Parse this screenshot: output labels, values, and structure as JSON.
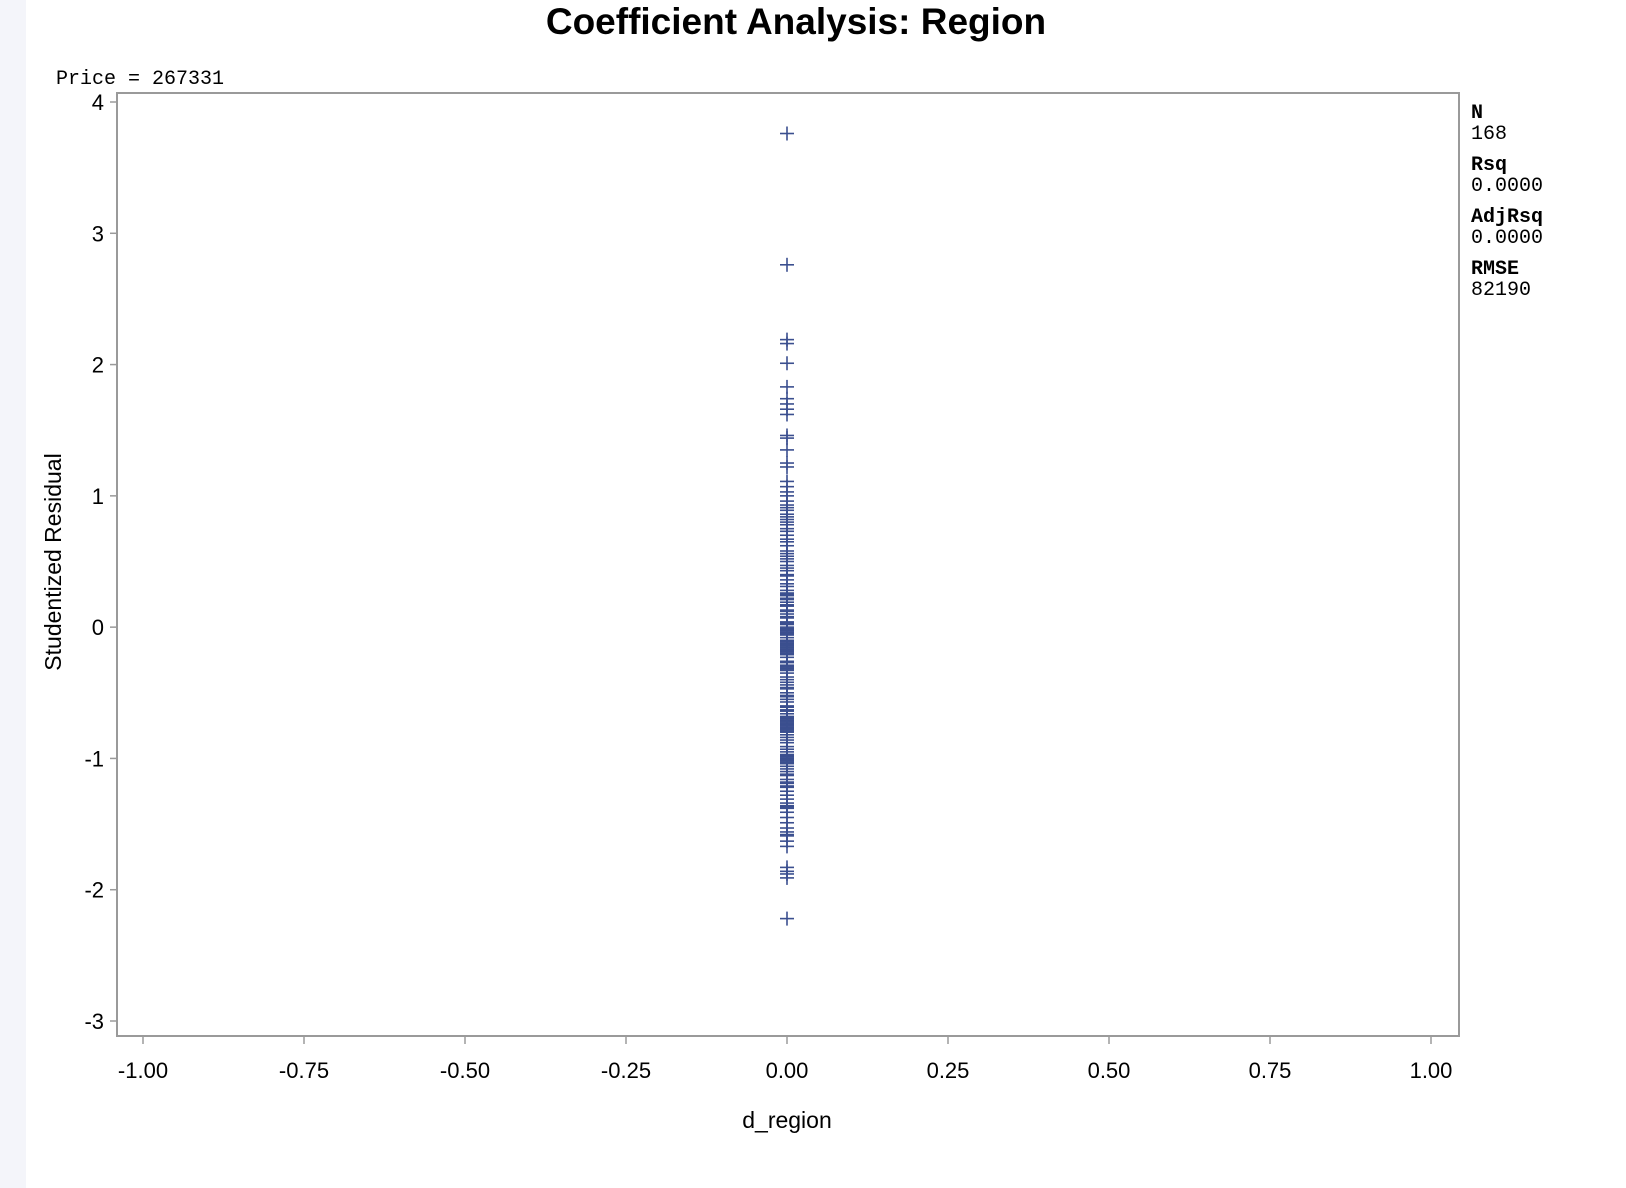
{
  "colors": {
    "marker": "#3b4f8f",
    "frame": "#9a9a9a",
    "background": "#ffffff",
    "page_margin": "#f4f5fa"
  },
  "chart_data": {
    "type": "scatter",
    "title": "Coefficient Analysis: Region",
    "subtitle": "Price = 267331",
    "xlabel": "d_region",
    "ylabel": "Studentized Residual",
    "xlim": [
      -1.0,
      1.0
    ],
    "ylim": [
      -3,
      4
    ],
    "x_ticks": [
      "-1.00",
      "-0.75",
      "-0.50",
      "-0.25",
      "0.00",
      "0.25",
      "0.50",
      "0.75",
      "1.00"
    ],
    "y_ticks": [
      "4",
      "3",
      "2",
      "1",
      "0",
      "-1",
      "-2",
      "-3"
    ],
    "marker": "plus",
    "grid": false,
    "series": [
      {
        "x": [
          0,
          0,
          0,
          0,
          0,
          0,
          0,
          0,
          0,
          0,
          0,
          0,
          0,
          0,
          0,
          0,
          0,
          0,
          0,
          0,
          0,
          0,
          0,
          0,
          0,
          0,
          0,
          0,
          0,
          0,
          0,
          0,
          0,
          0,
          0,
          0,
          0,
          0,
          0,
          0,
          0,
          0,
          0,
          0,
          0,
          0,
          0,
          0,
          0,
          0,
          0,
          0,
          0,
          0,
          0,
          0,
          0,
          0,
          0,
          0,
          0,
          0,
          0,
          0,
          0,
          0,
          0,
          0,
          0,
          0,
          0,
          0,
          0,
          0,
          0,
          0,
          0,
          0,
          0,
          0,
          0,
          0,
          0,
          0,
          0,
          0,
          0,
          0,
          0,
          0,
          0,
          0,
          0,
          0,
          0,
          0,
          0,
          0,
          0,
          0,
          0,
          0,
          0,
          0,
          0,
          0,
          0,
          0,
          0,
          0,
          0,
          0,
          0,
          0,
          0,
          0,
          0,
          0,
          0,
          0,
          0,
          0,
          0,
          0,
          0,
          0,
          0,
          0,
          0,
          0,
          0,
          0,
          0,
          0,
          0,
          0,
          0,
          0,
          0,
          0,
          0,
          0,
          0,
          0,
          0,
          0,
          0,
          0,
          0,
          0,
          0,
          0,
          0,
          0,
          0,
          0,
          0,
          0,
          0,
          0,
          0,
          0,
          0,
          0,
          0,
          0,
          0,
          0
        ],
        "y": [
          3.76,
          2.76,
          2.19,
          2.16,
          2.01,
          1.83,
          1.74,
          1.7,
          1.66,
          1.62,
          1.46,
          1.44,
          1.35,
          1.25,
          1.22,
          1.11,
          1.07,
          1.03,
          1.0,
          0.93,
          0.89,
          0.86,
          0.82,
          0.78,
          0.73,
          0.7,
          0.67,
          0.62,
          0.56,
          0.52,
          0.5,
          0.47,
          0.43,
          0.39,
          0.36,
          0.31,
          0.26,
          0.24,
          0.22,
          0.19,
          0.16,
          0.13,
          0.1,
          0.07,
          0.04,
          0.02,
          0.0,
          -0.01,
          -0.02,
          -0.03,
          -0.04,
          -0.06,
          -0.1,
          -0.12,
          -0.14,
          -0.15,
          -0.17,
          -0.18,
          -0.19,
          -0.21,
          -0.26,
          -0.29,
          -0.31,
          -0.32,
          -0.35,
          -0.4,
          -0.44,
          -0.47,
          -0.5,
          -0.53,
          -0.57,
          -0.61,
          -0.64,
          -0.66,
          -0.68,
          -0.7,
          -0.71,
          -0.72,
          -0.73,
          -0.74,
          -0.75,
          -0.76,
          -0.77,
          -0.78,
          -0.8,
          -0.84,
          -0.88,
          -0.91,
          -0.95,
          -0.98,
          -0.99,
          -1.0,
          -1.01,
          -1.02,
          -1.03,
          -1.04,
          -1.06,
          -1.1,
          -1.13,
          -1.16,
          -1.19,
          -1.22,
          -1.25,
          -1.28,
          -1.31,
          -1.34,
          -1.36,
          -1.37,
          -1.38,
          -1.41,
          -1.45,
          -1.49,
          -1.53,
          -1.56,
          -1.58,
          -1.59,
          -1.63,
          -1.67,
          -1.83,
          -1.86,
          -1.88,
          -1.91,
          -2.22,
          0.96,
          0.91,
          0.84,
          0.8,
          0.75,
          0.65,
          0.58,
          0.54,
          0.45,
          0.4,
          0.33,
          0.28,
          0.25,
          0.21,
          0.17,
          0.12,
          0.08,
          0.03,
          -0.05,
          -0.08,
          -0.11,
          -0.13,
          -0.16,
          -0.2,
          -0.23,
          -0.27,
          -0.3,
          -0.33,
          -0.38,
          -0.42,
          -0.46,
          -0.52,
          -0.55,
          -0.6,
          -0.63,
          -0.69,
          -0.79,
          -0.82,
          -0.86,
          -0.93,
          -0.97,
          -1.08,
          -1.12,
          -1.18,
          -1.21
        ]
      }
    ],
    "stats": [
      {
        "label": "N",
        "value": "168"
      },
      {
        "label": "Rsq",
        "value": "0.0000"
      },
      {
        "label": "AdjRsq",
        "value": "0.0000"
      },
      {
        "label": "RMSE",
        "value": "82190"
      }
    ]
  }
}
